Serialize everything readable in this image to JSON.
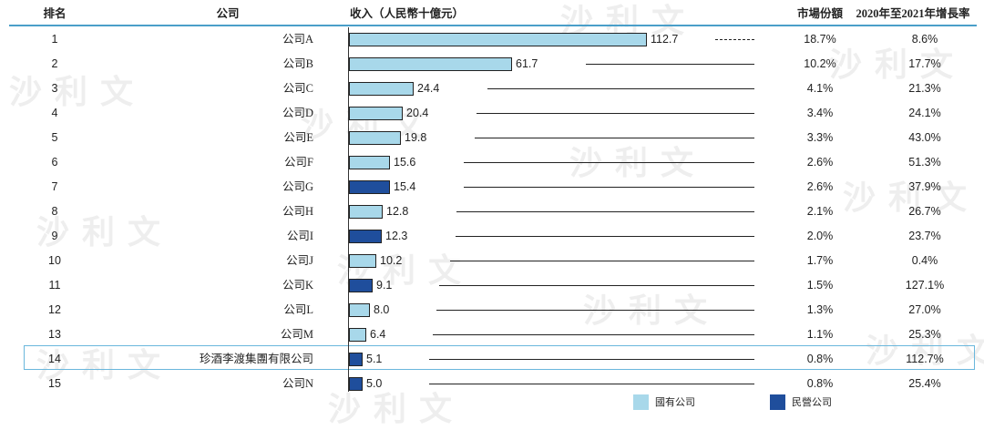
{
  "watermark": "沙利文",
  "header": {
    "rank": "排名",
    "company": "公司",
    "revenue": "收入（人民幣十億元）",
    "share": "市場份額",
    "growth": "2020年至2021年增長率"
  },
  "colors": {
    "state_owned": "#a8d8ea",
    "private": "#1f4e9c",
    "divider": "#4a9fc9",
    "highlight_border": "#6ab7dc"
  },
  "legend": [
    {
      "label": "國有公司",
      "color": "#a8d8ea"
    },
    {
      "label": "民營公司",
      "color": "#1f4e9c"
    }
  ],
  "chart_data": {
    "type": "bar",
    "orientation": "horizontal",
    "title": "",
    "categories": [
      "公司A",
      "公司B",
      "公司C",
      "公司D",
      "公司E",
      "公司F",
      "公司G",
      "公司H",
      "公司I",
      "公司J",
      "公司K",
      "公司L",
      "公司M",
      "珍酒李渡集團有限公司",
      "公司N"
    ],
    "values": [
      112.7,
      61.7,
      24.4,
      20.4,
      19.8,
      15.6,
      15.4,
      12.8,
      12.3,
      10.2,
      9.1,
      8.0,
      6.4,
      5.1,
      5.0
    ],
    "value_labels": [
      "112.7",
      "61.7",
      "24.4",
      "20.4",
      "19.8",
      "15.6",
      "15.4",
      "12.8",
      "12.3",
      "10.2",
      "9.1",
      "8.0",
      "6.4",
      "5.1",
      "5.0"
    ],
    "ownership": [
      "state",
      "state",
      "state",
      "state",
      "state",
      "state",
      "private",
      "state",
      "private",
      "state",
      "private",
      "state",
      "state",
      "private",
      "private"
    ],
    "ranks": [
      "1",
      "2",
      "3",
      "4",
      "5",
      "6",
      "7",
      "8",
      "9",
      "10",
      "11",
      "12",
      "13",
      "14",
      "15"
    ],
    "market_share": [
      "18.7%",
      "10.2%",
      "4.1%",
      "3.4%",
      "3.3%",
      "2.6%",
      "2.6%",
      "2.1%",
      "2.0%",
      "1.7%",
      "1.5%",
      "1.3%",
      "1.1%",
      "0.8%",
      "0.8%"
    ],
    "growth_2020_2021": [
      "8.6%",
      "17.7%",
      "21.3%",
      "24.1%",
      "43.0%",
      "51.3%",
      "37.9%",
      "26.7%",
      "23.7%",
      "0.4%",
      "127.1%",
      "27.0%",
      "25.3%",
      "112.7%",
      "25.4%"
    ],
    "highlighted_index": 13,
    "xlim": [
      0,
      125
    ]
  }
}
